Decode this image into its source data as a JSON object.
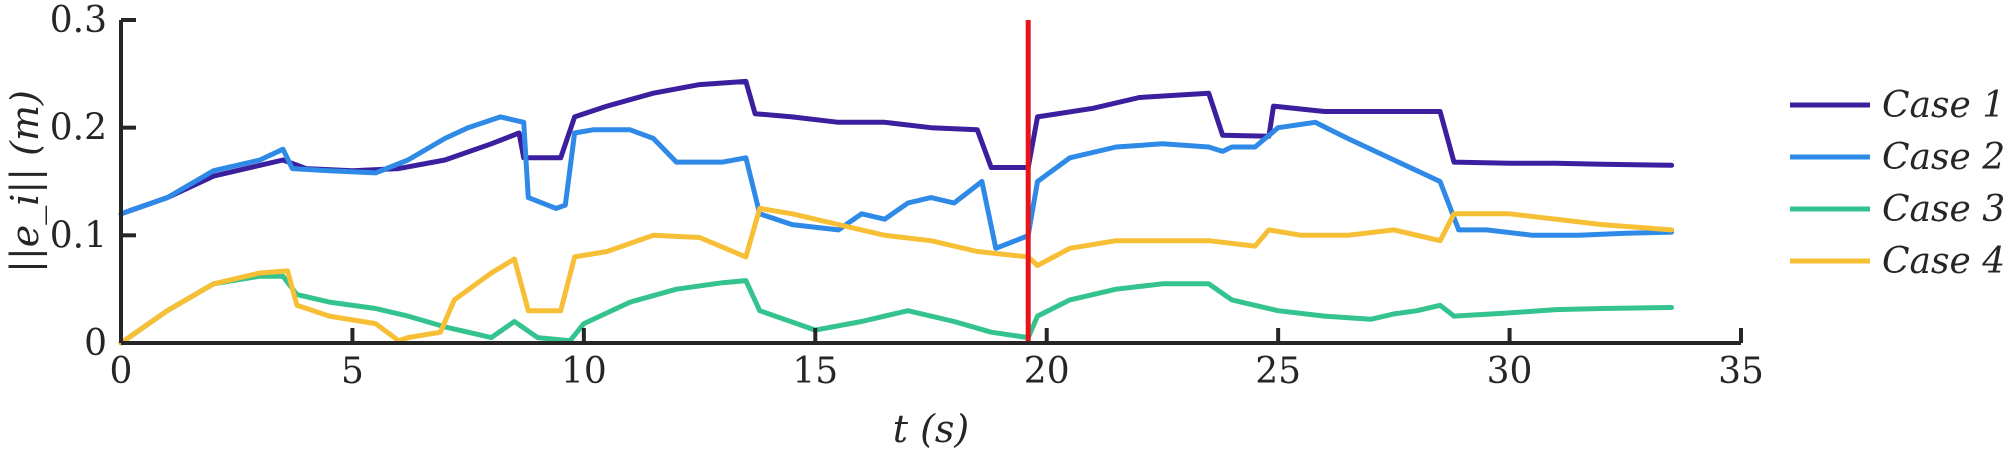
{
  "chart_data": {
    "type": "line",
    "xlabel": "t (s)",
    "ylabel": "||e_i|| (m)",
    "xlim": [
      0,
      35
    ],
    "ylim": [
      0,
      0.3
    ],
    "xticks": [
      0,
      5,
      10,
      15,
      20,
      25,
      30,
      35
    ],
    "yticks": [
      0,
      0.1,
      0.2,
      0.3
    ],
    "xtick_labels": [
      "0",
      "5",
      "10",
      "15",
      "20",
      "25",
      "30",
      "35"
    ],
    "ytick_labels": [
      "0",
      "0.1",
      "0.2",
      "0.3"
    ],
    "grid": false,
    "legend_position": "right",
    "vertical_marker": {
      "x": 19.6,
      "color": "#e8141b"
    },
    "series": [
      {
        "name": "Case 1",
        "color": "#3b1f9e",
        "x": [
          0,
          1,
          2,
          3,
          3.5,
          4,
          5,
          6,
          7,
          8,
          8.6,
          8.7,
          9.5,
          9.8,
          10.5,
          11.5,
          12.5,
          13.5,
          13.7,
          14.5,
          15.5,
          16.5,
          17.5,
          18.5,
          18.8,
          19.6,
          19.8,
          21,
          22,
          23.5,
          23.8,
          24.8,
          24.9,
          26,
          27,
          28.5,
          28.8,
          30,
          31,
          32,
          33.5
        ],
        "y": [
          0.12,
          0.135,
          0.155,
          0.165,
          0.17,
          0.162,
          0.16,
          0.162,
          0.17,
          0.185,
          0.195,
          0.172,
          0.172,
          0.21,
          0.22,
          0.232,
          0.24,
          0.243,
          0.213,
          0.21,
          0.205,
          0.205,
          0.2,
          0.198,
          0.163,
          0.163,
          0.21,
          0.218,
          0.228,
          0.232,
          0.193,
          0.192,
          0.22,
          0.215,
          0.215,
          0.215,
          0.168,
          0.167,
          0.167,
          0.166,
          0.165
        ]
      },
      {
        "name": "Case 2",
        "color": "#2e8ae6",
        "x": [
          0,
          1,
          2,
          3,
          3.5,
          3.7,
          4.5,
          5.5,
          6.2,
          7,
          7.5,
          8.2,
          8.7,
          8.8,
          9.4,
          9.6,
          9.8,
          10.2,
          11,
          11.5,
          12,
          13,
          13.5,
          13.8,
          14.5,
          15.5,
          16,
          16.5,
          17,
          17.5,
          18,
          18.6,
          18.9,
          19.5,
          19.6,
          19.8,
          20.5,
          21.5,
          22.5,
          23.5,
          23.8,
          24,
          24.5,
          25,
          25.8,
          26.5,
          27.5,
          28.5,
          28.9,
          29.5,
          30.5,
          31.5,
          32.5,
          33.5
        ],
        "y": [
          0.12,
          0.135,
          0.16,
          0.17,
          0.18,
          0.162,
          0.16,
          0.158,
          0.17,
          0.19,
          0.2,
          0.21,
          0.205,
          0.135,
          0.125,
          0.128,
          0.195,
          0.198,
          0.198,
          0.19,
          0.168,
          0.168,
          0.172,
          0.12,
          0.11,
          0.105,
          0.12,
          0.115,
          0.13,
          0.135,
          0.13,
          0.15,
          0.088,
          0.098,
          0.1,
          0.15,
          0.172,
          0.182,
          0.185,
          0.182,
          0.178,
          0.182,
          0.182,
          0.2,
          0.205,
          0.19,
          0.17,
          0.15,
          0.105,
          0.105,
          0.1,
          0.1,
          0.102,
          0.103
        ]
      },
      {
        "name": "Case 3",
        "color": "#34c38f",
        "x": [
          0,
          1,
          2,
          3,
          3.5,
          3.8,
          4.5,
          5.5,
          6.2,
          7,
          7.5,
          8,
          8.5,
          9,
          9.7,
          10,
          11,
          12,
          13,
          13.5,
          13.8,
          15,
          16,
          17,
          18,
          18.8,
          19.6,
          19.8,
          20.5,
          21.5,
          22.5,
          23.5,
          24,
          25,
          26,
          27,
          27.5,
          28,
          28.5,
          28.8,
          30,
          31,
          32,
          33.5
        ],
        "y": [
          0,
          0.03,
          0.055,
          0.062,
          0.062,
          0.045,
          0.038,
          0.032,
          0.025,
          0.015,
          0.01,
          0.005,
          0.02,
          0.005,
          0.002,
          0.018,
          0.038,
          0.05,
          0.056,
          0.058,
          0.03,
          0.012,
          0.02,
          0.03,
          0.02,
          0.01,
          0.005,
          0.025,
          0.04,
          0.05,
          0.055,
          0.055,
          0.04,
          0.03,
          0.025,
          0.022,
          0.027,
          0.03,
          0.035,
          0.025,
          0.028,
          0.031,
          0.032,
          0.033
        ]
      },
      {
        "name": "Case 4",
        "color": "#f7bf36",
        "x": [
          0,
          1,
          2,
          3,
          3.6,
          3.8,
          4.5,
          5.5,
          6,
          6.2,
          6.9,
          7.2,
          8,
          8.5,
          8.8,
          9.5,
          9.8,
          10.5,
          11.5,
          12.5,
          13.5,
          13.8,
          14.5,
          15.5,
          16.5,
          17.5,
          18.5,
          19.6,
          19.8,
          20.5,
          21.5,
          22.5,
          23.5,
          24.5,
          24.8,
          25.5,
          26.5,
          27.5,
          28.5,
          28.8,
          30,
          31,
          32,
          33.5
        ],
        "y": [
          0,
          0.03,
          0.055,
          0.065,
          0.067,
          0.035,
          0.025,
          0.018,
          0.002,
          0.005,
          0.01,
          0.04,
          0.065,
          0.078,
          0.03,
          0.03,
          0.08,
          0.085,
          0.1,
          0.098,
          0.08,
          0.125,
          0.12,
          0.11,
          0.1,
          0.095,
          0.085,
          0.08,
          0.072,
          0.088,
          0.095,
          0.095,
          0.095,
          0.09,
          0.105,
          0.1,
          0.1,
          0.105,
          0.095,
          0.12,
          0.12,
          0.115,
          0.11,
          0.105
        ]
      }
    ]
  }
}
